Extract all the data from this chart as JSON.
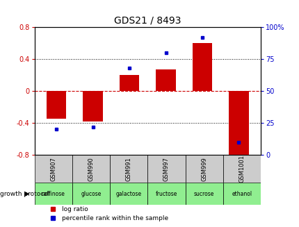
{
  "title": "GDS21 / 8493",
  "samples": [
    "GSM907",
    "GSM990",
    "GSM991",
    "GSM997",
    "GSM999",
    "GSM1001"
  ],
  "log_ratios": [
    -0.35,
    -0.38,
    0.2,
    0.27,
    0.6,
    -0.85
  ],
  "percentile_ranks": [
    20,
    22,
    68,
    80,
    92,
    10
  ],
  "growth_protocol": [
    "raffinose",
    "glucose",
    "galactose",
    "fructose",
    "sucrose",
    "ethanol"
  ],
  "bar_color": "#CC0000",
  "dot_color": "#0000CC",
  "left_ylim": [
    -0.8,
    0.8
  ],
  "right_ylim": [
    0,
    100
  ],
  "left_yticks": [
    -0.8,
    -0.4,
    0,
    0.4,
    0.8
  ],
  "right_yticks": [
    0,
    25,
    50,
    75,
    100
  ],
  "title_color": "#000000",
  "left_tick_color": "#CC0000",
  "right_tick_color": "#0000CC",
  "cell_bg_color": "#CCCCCC",
  "growth_bg_color": "#90EE90",
  "bar_width": 0.55
}
